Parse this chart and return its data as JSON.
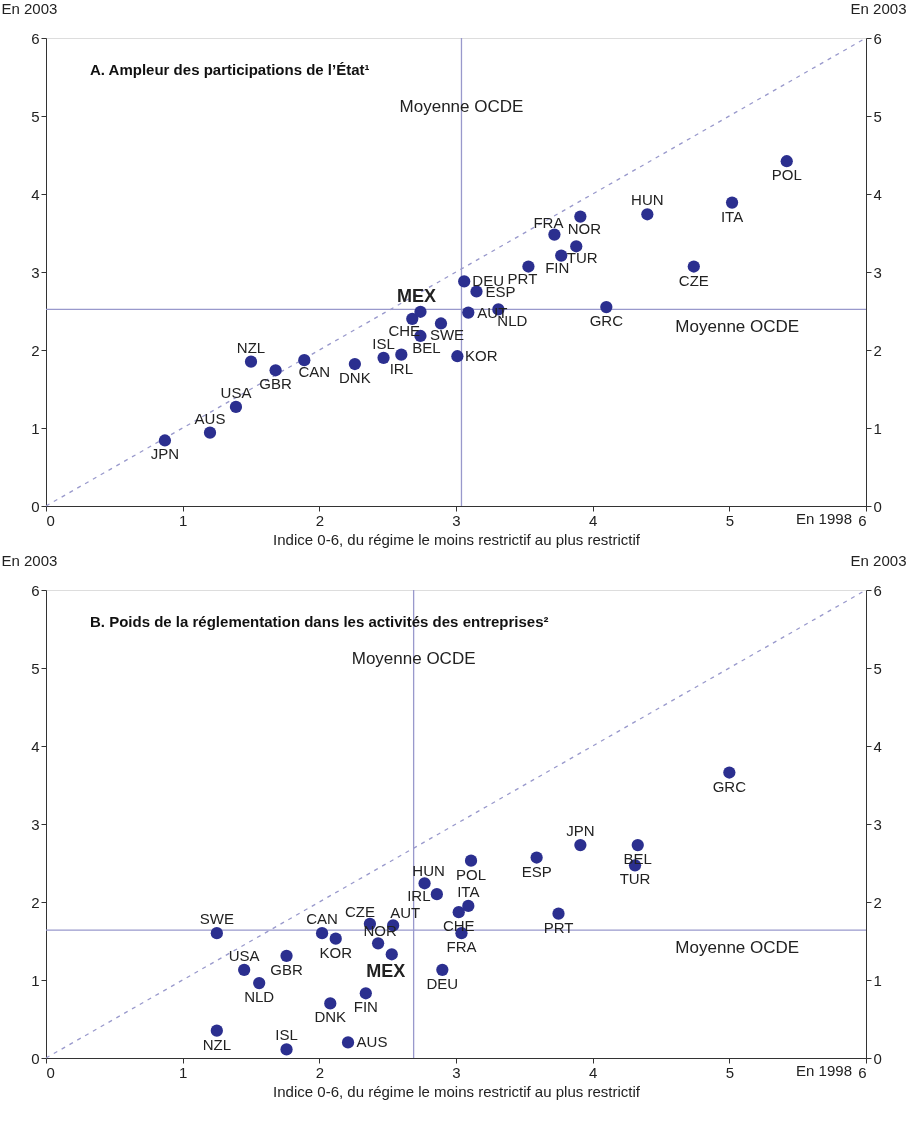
{
  "chart_data": [
    {
      "type": "scatter",
      "title": "A.  Ampleur des participations de l’État¹",
      "xlabel": "Indice 0-6, du régime le moins restrictif au plus restrictif",
      "ylabel": "En 2003",
      "y2label": "En 2003",
      "xlim": [
        0,
        6
      ],
      "ylim": [
        0,
        6
      ],
      "y2lim": [
        0,
        6
      ],
      "xticks": [
        0,
        1,
        2,
        3,
        4,
        5,
        6
      ],
      "yticks": [
        0,
        1,
        2,
        3,
        4,
        5,
        6
      ],
      "y2ticks": [
        0,
        1,
        2,
        3,
        4,
        5,
        6
      ],
      "grid": false,
      "marker": "circle",
      "series": [
        {
          "type": "scatter",
          "color": "#2b2f8f",
          "x": [
            0.87,
            1.2,
            1.39,
            1.5,
            1.68,
            1.89,
            2.26,
            2.47,
            2.6,
            2.68,
            2.74,
            2.74,
            2.89,
            3.01,
            3.06,
            3.09,
            3.15,
            3.31,
            3.53,
            4.1,
            3.72,
            3.77,
            3.88,
            3.91,
            4.4,
            4.74,
            5.02,
            5.42
          ],
          "values": [
            0.84,
            0.94,
            1.27,
            1.85,
            1.74,
            1.87,
            1.82,
            1.9,
            1.94,
            2.4,
            2.49,
            2.18,
            2.34,
            1.92,
            2.88,
            2.48,
            2.75,
            2.52,
            3.07,
            2.55,
            3.48,
            3.21,
            3.33,
            3.71,
            3.74,
            3.07,
            3.89,
            4.42
          ]
        },
        {
          "type": "line",
          "color": "#9999cc",
          "line_style": "dashed",
          "marker": "none",
          "x": [
            0,
            6
          ],
          "values": [
            0,
            6
          ]
        }
      ],
      "ref_lines": [
        {
          "axis": "x",
          "value": 3.04,
          "label": "Moyenne OCDE",
          "color": "#9999cc"
        },
        {
          "axis": "y",
          "value": 2.52,
          "label": "Moyenne OCDE",
          "color": "#9999cc"
        }
      ],
      "annotations": [
        {
          "text": "JPN",
          "x": 0.87,
          "y": 0.84
        },
        {
          "text": "AUS",
          "x": 1.2,
          "y": 0.94
        },
        {
          "text": "USA",
          "x": 1.39,
          "y": 1.27
        },
        {
          "text": "NZL",
          "x": 1.5,
          "y": 1.85
        },
        {
          "text": "GBR",
          "x": 1.68,
          "y": 1.74
        },
        {
          "text": "CAN",
          "x": 1.89,
          "y": 1.87
        },
        {
          "text": "DNK",
          "x": 2.26,
          "y": 1.82
        },
        {
          "text": "ISL",
          "x": 2.47,
          "y": 1.9
        },
        {
          "text": "IRL",
          "x": 2.6,
          "y": 1.94
        },
        {
          "text": "CHE",
          "x": 2.68,
          "y": 2.4
        },
        {
          "text": "MEX",
          "x": 2.74,
          "y": 2.49
        },
        {
          "text": "BEL",
          "x": 2.74,
          "y": 2.18
        },
        {
          "text": "SWE",
          "x": 2.89,
          "y": 2.34
        },
        {
          "text": "KOR",
          "x": 3.01,
          "y": 1.92
        },
        {
          "text": "DEU",
          "x": 3.06,
          "y": 2.88
        },
        {
          "text": "AUT",
          "x": 3.09,
          "y": 2.48
        },
        {
          "text": "ESP",
          "x": 3.15,
          "y": 2.75
        },
        {
          "text": "NLD",
          "x": 3.31,
          "y": 2.52
        },
        {
          "text": "PRT",
          "x": 3.53,
          "y": 3.07
        },
        {
          "text": "GRC",
          "x": 4.1,
          "y": 2.55
        },
        {
          "text": "FRA",
          "x": 3.72,
          "y": 3.48
        },
        {
          "text": "FIN",
          "x": 3.77,
          "y": 3.21
        },
        {
          "text": "TUR",
          "x": 3.88,
          "y": 3.33
        },
        {
          "text": "NOR",
          "x": 3.91,
          "y": 3.71
        },
        {
          "text": "HUN",
          "x": 4.4,
          "y": 3.74
        },
        {
          "text": "CZE",
          "x": 4.74,
          "y": 3.07
        },
        {
          "text": "ITA",
          "x": 5.02,
          "y": 3.89
        },
        {
          "text": "POL",
          "x": 5.42,
          "y": 4.42
        },
        "En 1998"
      ]
    },
    {
      "type": "scatter",
      "title": "B.  Poids de la réglementation dans les activités des entreprises²",
      "xlabel": "Indice 0-6, du régime le moins restrictif au plus restrictif",
      "ylabel": "En 2003",
      "y2label": "En 2003",
      "xlim": [
        0,
        6
      ],
      "ylim": [
        0,
        6
      ],
      "y2lim": [
        0,
        6
      ],
      "xticks": [
        0,
        1,
        2,
        3,
        4,
        5,
        6
      ],
      "yticks": [
        0,
        1,
        2,
        3,
        4,
        5,
        6
      ],
      "y2ticks": [
        0,
        1,
        2,
        3,
        4,
        5,
        6
      ],
      "grid": false,
      "marker": "circle",
      "series": [
        {
          "type": "scatter",
          "color": "#2b2f8f",
          "x": [
            1.25,
            1.25,
            1.45,
            1.56,
            1.76,
            1.76,
            2.02,
            2.12,
            2.08,
            2.34,
            2.21,
            2.37,
            2.43,
            2.54,
            2.53,
            2.9,
            2.77,
            2.86,
            3.11,
            3.09,
            3.02,
            3.04,
            3.59,
            3.75,
            3.91,
            4.33,
            4.31,
            5.0
          ],
          "values": [
            1.6,
            0.35,
            1.13,
            0.96,
            1.31,
            0.11,
            1.6,
            1.53,
            0.7,
            0.83,
            0.2,
            1.72,
            1.47,
            1.7,
            1.33,
            1.13,
            2.24,
            2.1,
            2.53,
            1.95,
            1.87,
            1.6,
            2.57,
            1.85,
            2.73,
            2.73,
            2.47,
            3.66
          ]
        },
        {
          "type": "line",
          "color": "#9999cc",
          "line_style": "dashed",
          "marker": "none",
          "x": [
            0,
            6
          ],
          "values": [
            0,
            6
          ]
        }
      ],
      "ref_lines": [
        {
          "axis": "x",
          "value": 2.69,
          "label": "Moyenne OCDE",
          "color": "#9999cc"
        },
        {
          "axis": "y",
          "value": 1.64,
          "label": "Moyenne OCDE",
          "color": "#9999cc"
        }
      ],
      "annotations": [
        {
          "text": "SWE",
          "x": 1.25,
          "y": 1.6
        },
        {
          "text": "NZL",
          "x": 1.25,
          "y": 0.35
        },
        {
          "text": "USA",
          "x": 1.45,
          "y": 1.13
        },
        {
          "text": "NLD",
          "x": 1.56,
          "y": 0.96
        },
        {
          "text": "GBR",
          "x": 1.76,
          "y": 1.31
        },
        {
          "text": "ISL",
          "x": 1.76,
          "y": 0.11
        },
        {
          "text": "CAN",
          "x": 2.02,
          "y": 1.6
        },
        {
          "text": "KOR",
          "x": 2.12,
          "y": 1.53
        },
        {
          "text": "DNK",
          "x": 2.08,
          "y": 0.7
        },
        {
          "text": "FIN",
          "x": 2.34,
          "y": 0.83
        },
        {
          "text": "AUS",
          "x": 2.21,
          "y": 0.2
        },
        {
          "text": "CZE",
          "x": 2.37,
          "y": 1.72
        },
        {
          "text": "NOR",
          "x": 2.43,
          "y": 1.47
        },
        {
          "text": "AUT",
          "x": 2.54,
          "y": 1.7
        },
        {
          "text": "MEX",
          "x": 2.53,
          "y": 1.33
        },
        {
          "text": "DEU",
          "x": 2.9,
          "y": 1.13
        },
        {
          "text": "HUN",
          "x": 2.77,
          "y": 2.24
        },
        {
          "text": "IRL",
          "x": 2.86,
          "y": 2.1
        },
        {
          "text": "POL",
          "x": 3.11,
          "y": 2.53
        },
        {
          "text": "ITA",
          "x": 3.09,
          "y": 1.95
        },
        {
          "text": "CHE",
          "x": 3.02,
          "y": 1.87
        },
        {
          "text": "FRA",
          "x": 3.04,
          "y": 1.6
        },
        {
          "text": "ESP",
          "x": 3.59,
          "y": 2.57
        },
        {
          "text": "PRT",
          "x": 3.75,
          "y": 1.85
        },
        {
          "text": "JPN",
          "x": 3.91,
          "y": 2.73
        },
        {
          "text": "BEL",
          "x": 4.33,
          "y": 2.73
        },
        {
          "text": "TUR",
          "x": 4.31,
          "y": 2.47
        },
        {
          "text": "GRC",
          "x": 5.0,
          "y": 3.66
        },
        "En 1998"
      ]
    }
  ]
}
